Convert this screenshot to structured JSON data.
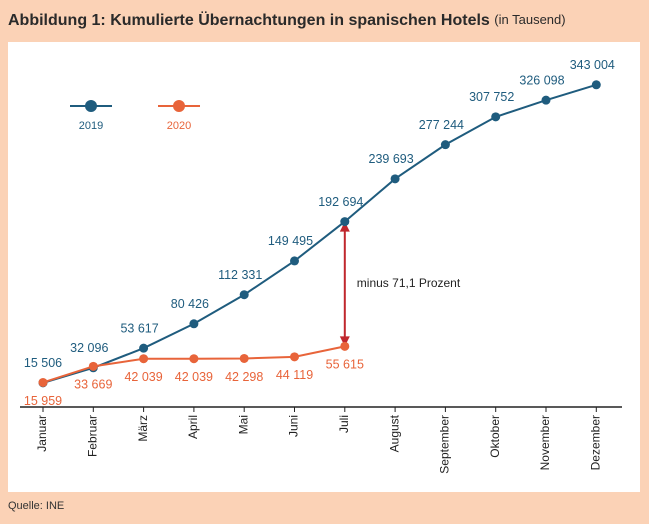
{
  "chart_data": {
    "type": "line",
    "title": "Abbildung 1: Kumulierte Übernachtungen in spanischen Hotels",
    "subtitle": "(in Tausend)",
    "source": "Quelle: INE",
    "annotation": "minus 71,1 Prozent",
    "categories": [
      "Januar",
      "Februar",
      "März",
      "April",
      "Mai",
      "Juni",
      "Juli",
      "August",
      "September",
      "Oktober",
      "November",
      "Dezember"
    ],
    "series": [
      {
        "name": "2019",
        "color": "#1f5c7e",
        "values": [
          15506,
          32096,
          53617,
          80426,
          112331,
          149495,
          192694,
          239693,
          277244,
          307752,
          326098,
          343004
        ],
        "value_labels": [
          "15 506",
          "32 096",
          "53 617",
          "80 426",
          "112 331",
          "149 495",
          "192 694",
          "239 693",
          "277 244",
          "307 752",
          "326 098",
          "343 004"
        ]
      },
      {
        "name": "2020",
        "color": "#e8643a",
        "values": [
          15959,
          33669,
          42039,
          42039,
          42298,
          44119,
          55615,
          null,
          null,
          null,
          null,
          null
        ],
        "value_labels": [
          "15 959",
          "33 669",
          "42 039",
          "42 039",
          "42 298",
          "44 119",
          "55 615",
          null,
          null,
          null,
          null,
          null
        ]
      }
    ],
    "ylim": [
      -11000,
      390000
    ],
    "legend": "top-left"
  }
}
